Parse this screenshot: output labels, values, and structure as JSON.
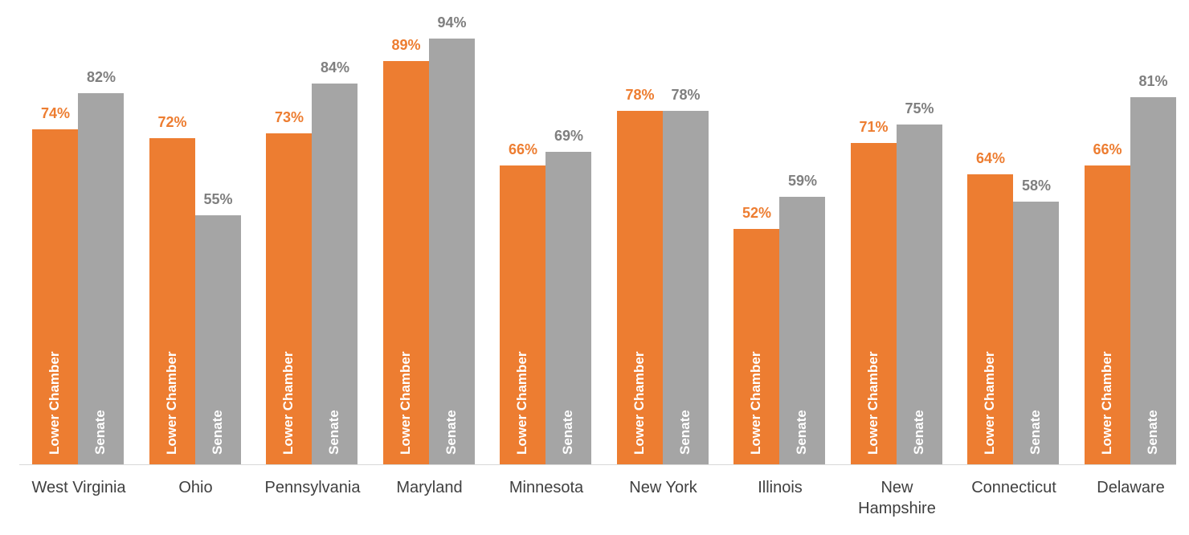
{
  "chart_data": {
    "type": "bar",
    "title": "",
    "xlabel": "",
    "ylabel": "",
    "ylim": [
      0,
      100
    ],
    "grid": false,
    "legend": "in-bar labels",
    "categories": [
      "West Virginia",
      "Ohio",
      "Pennsylvania",
      "Maryland",
      "Minnesota",
      "New York",
      "Illinois",
      "New Hampshire",
      "Connecticut",
      "Delaware"
    ],
    "series": [
      {
        "name": "Lower Chamber",
        "color": "#ed7d31",
        "values": [
          74,
          72,
          73,
          89,
          66,
          78,
          52,
          71,
          64,
          66
        ]
      },
      {
        "name": "Senate",
        "color": "#a5a5a5",
        "values": [
          82,
          55,
          84,
          94,
          69,
          78,
          59,
          75,
          58,
          81
        ]
      }
    ]
  },
  "groups": [
    {
      "cat": "West Virginia",
      "lower": "74%",
      "senate": "82%"
    },
    {
      "cat": "Ohio",
      "lower": "72%",
      "senate": "55%"
    },
    {
      "cat": "Pennsylvania",
      "lower": "73%",
      "senate": "84%"
    },
    {
      "cat": "Maryland",
      "lower": "89%",
      "senate": "94%"
    },
    {
      "cat": "Minnesota",
      "lower": "66%",
      "senate": "69%"
    },
    {
      "cat": "New York",
      "lower": "78%",
      "senate": "78%"
    },
    {
      "cat": "Illinois",
      "lower": "52%",
      "senate": "59%"
    },
    {
      "cat": "New Hampshire",
      "lower": "71%",
      "senate": "75%"
    },
    {
      "cat": "Connecticut",
      "lower": "64%",
      "senate": "58%"
    },
    {
      "cat": "Delaware",
      "lower": "66%",
      "senate": "81%"
    }
  ],
  "labels": {
    "lower": "Lower Chamber",
    "senate": "Senate"
  }
}
